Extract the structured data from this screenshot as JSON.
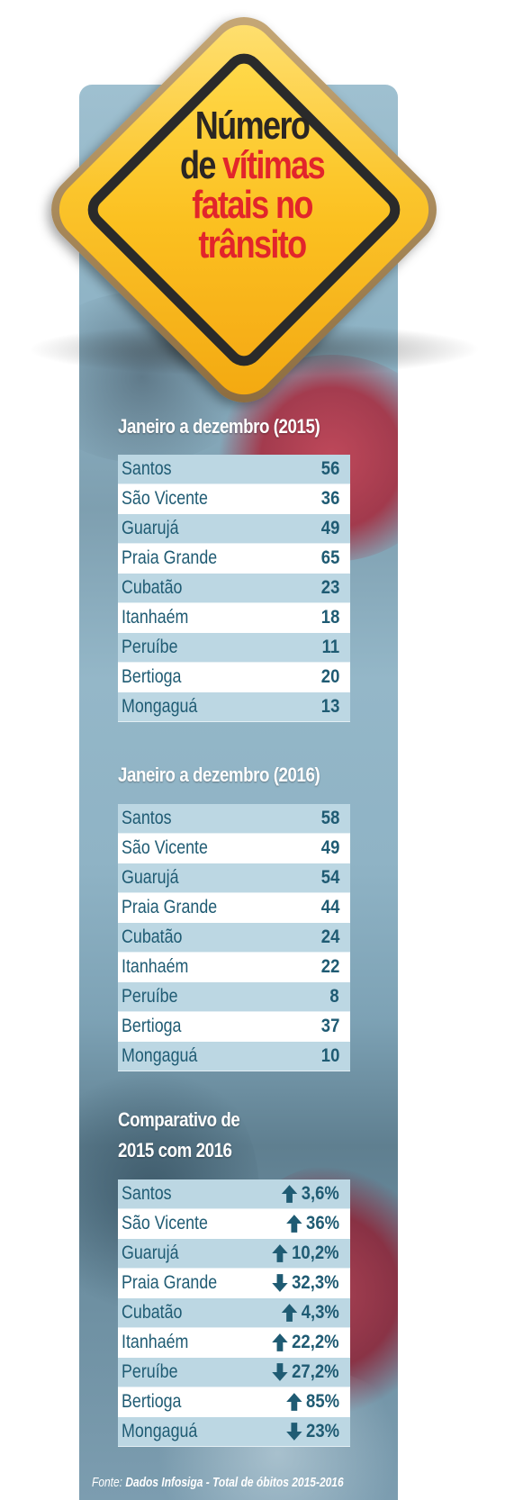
{
  "title": {
    "line1": "Número",
    "line2a": "de ",
    "line2b": "vítimas",
    "line3": "fatais no",
    "line4": "trânsito"
  },
  "colors": {
    "title_dark": "#2b2623",
    "title_red": "#e2252b",
    "row_text": "#1f5b73",
    "row_alt": "#bcd7e3",
    "sign_yellow": "#fbc52c"
  },
  "section_2015": {
    "heading": "Janeiro a dezembro (2015)",
    "rows": [
      {
        "name": "Santos",
        "value": "56"
      },
      {
        "name": "São Vicente",
        "value": "36"
      },
      {
        "name": "Guarujá",
        "value": "49"
      },
      {
        "name": "Praia Grande",
        "value": "65"
      },
      {
        "name": "Cubatão",
        "value": "23"
      },
      {
        "name": "Itanhaém",
        "value": "18"
      },
      {
        "name": "Peruíbe",
        "value": "11"
      },
      {
        "name": "Bertioga",
        "value": "20"
      },
      {
        "name": "Mongaguá",
        "value": "13"
      }
    ]
  },
  "section_2016": {
    "heading": "Janeiro a dezembro (2016)",
    "rows": [
      {
        "name": "Santos",
        "value": "58"
      },
      {
        "name": "São Vicente",
        "value": "49"
      },
      {
        "name": "Guarujá",
        "value": "54"
      },
      {
        "name": "Praia Grande",
        "value": "44"
      },
      {
        "name": "Cubatão",
        "value": "24"
      },
      {
        "name": "Itanhaém",
        "value": "22"
      },
      {
        "name": "Peruíbe",
        "value": "8"
      },
      {
        "name": "Bertioga",
        "value": "37"
      },
      {
        "name": "Mongaguá",
        "value": "10"
      }
    ]
  },
  "comparison": {
    "heading_line1": "Comparativo de",
    "heading_line2": "2015 com 2016",
    "rows": [
      {
        "name": "Santos",
        "value": "3,6%",
        "direction": "up"
      },
      {
        "name": "São Vicente",
        "value": "36%",
        "direction": "up"
      },
      {
        "name": "Guarujá",
        "value": "10,2%",
        "direction": "up"
      },
      {
        "name": "Praia Grande",
        "value": "32,3%",
        "direction": "down"
      },
      {
        "name": "Cubatão",
        "value": "4,3%",
        "direction": "up"
      },
      {
        "name": "Itanhaém",
        "value": "22,2%",
        "direction": "up"
      },
      {
        "name": "Peruíbe",
        "value": "27,2%",
        "direction": "down"
      },
      {
        "name": "Bertioga",
        "value": "85%",
        "direction": "up"
      },
      {
        "name": "Mongaguá",
        "value": "23%",
        "direction": "down"
      }
    ]
  },
  "source": {
    "prefix": "Fonte: ",
    "text": "Dados Infosiga - Total de óbitos 2015-2016"
  }
}
